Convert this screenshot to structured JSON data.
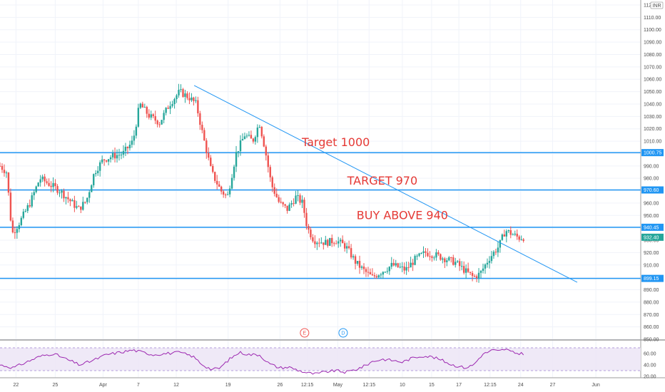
{
  "chart_data": {
    "type": "candlestick",
    "currency": "INR",
    "y_axis": {
      "min": 850,
      "max": 1120,
      "ticks": [
        850,
        860,
        870,
        880,
        890,
        900,
        910,
        920,
        930,
        940,
        950,
        960,
        970,
        980,
        990,
        1000,
        1010,
        1020,
        1030,
        1040,
        1050,
        1060,
        1070,
        1080,
        1090,
        1100,
        1110,
        1120
      ]
    },
    "x_ticks": [
      {
        "label": "22",
        "pos": 0.024
      },
      {
        "label": "25",
        "pos": 0.083
      },
      {
        "label": "Apr",
        "pos": 0.155
      },
      {
        "label": "7",
        "pos": 0.208
      },
      {
        "label": "12",
        "pos": 0.265
      },
      {
        "label": "19",
        "pos": 0.343
      },
      {
        "label": "26",
        "pos": 0.421
      },
      {
        "label": "12:15",
        "pos": 0.462
      },
      {
        "label": "May",
        "pos": 0.508
      },
      {
        "label": "12:15",
        "pos": 0.555
      },
      {
        "label": "10",
        "pos": 0.605
      },
      {
        "label": "15",
        "pos": 0.649
      },
      {
        "label": "17",
        "pos": 0.69
      },
      {
        "label": "12:15",
        "pos": 0.737
      },
      {
        "label": "24",
        "pos": 0.783
      },
      {
        "label": "27",
        "pos": 0.831
      },
      {
        "label": "Jun",
        "pos": 0.896
      }
    ],
    "horizontal_levels": [
      {
        "value": 1000.75,
        "label": "1000.75"
      },
      {
        "value": 970.6,
        "label": "970.60"
      },
      {
        "value": 940.45,
        "label": "940.45"
      },
      {
        "value": 899.15,
        "label": "899.15"
      }
    ],
    "last_price": {
      "value": 932.4,
      "label": "932.40",
      "color": "#26a69a"
    },
    "annotations": [
      {
        "text": "Target 1000",
        "value": 1006,
        "pos": 0.505
      },
      {
        "text": "TARGET 970",
        "value": 975,
        "pos": 0.575
      },
      {
        "text": "BUY ABOVE 940",
        "value": 947,
        "pos": 0.605
      }
    ],
    "trendline": [
      {
        "pos": 0.292,
        "value": 1055
      },
      {
        "pos": 0.868,
        "value": 896
      }
    ],
    "price_path": [
      [
        0.0,
        990
      ],
      [
        0.01,
        985
      ],
      [
        0.018,
        935
      ],
      [
        0.03,
        945
      ],
      [
        0.045,
        960
      ],
      [
        0.06,
        980
      ],
      [
        0.075,
        975
      ],
      [
        0.09,
        970
      ],
      [
        0.105,
        962
      ],
      [
        0.118,
        955
      ],
      [
        0.13,
        962
      ],
      [
        0.142,
        985
      ],
      [
        0.155,
        995
      ],
      [
        0.17,
        998
      ],
      [
        0.185,
        1000
      ],
      [
        0.2,
        1010
      ],
      [
        0.21,
        1040
      ],
      [
        0.225,
        1030
      ],
      [
        0.24,
        1025
      ],
      [
        0.255,
        1040
      ],
      [
        0.27,
        1050
      ],
      [
        0.285,
        1045
      ],
      [
        0.295,
        1040
      ],
      [
        0.305,
        1015
      ],
      [
        0.318,
        985
      ],
      [
        0.332,
        970
      ],
      [
        0.342,
        965
      ],
      [
        0.355,
        1000
      ],
      [
        0.368,
        1015
      ],
      [
        0.38,
        1010
      ],
      [
        0.39,
        1025
      ],
      [
        0.398,
        1005
      ],
      [
        0.408,
        975
      ],
      [
        0.42,
        960
      ],
      [
        0.432,
        955
      ],
      [
        0.445,
        965
      ],
      [
        0.455,
        960
      ],
      [
        0.462,
        940
      ],
      [
        0.472,
        930
      ],
      [
        0.49,
        928
      ],
      [
        0.505,
        930
      ],
      [
        0.52,
        925
      ],
      [
        0.535,
        912
      ],
      [
        0.548,
        905
      ],
      [
        0.56,
        900
      ],
      [
        0.575,
        905
      ],
      [
        0.59,
        910
      ],
      [
        0.61,
        906
      ],
      [
        0.625,
        915
      ],
      [
        0.64,
        920
      ],
      [
        0.655,
        918
      ],
      [
        0.67,
        915
      ],
      [
        0.685,
        912
      ],
      [
        0.7,
        905
      ],
      [
        0.712,
        900
      ],
      [
        0.722,
        903
      ],
      [
        0.735,
        915
      ],
      [
        0.75,
        925
      ],
      [
        0.76,
        938
      ],
      [
        0.77,
        935
      ],
      [
        0.78,
        932
      ],
      [
        0.79,
        932.4
      ]
    ],
    "rsi": {
      "min": 20,
      "max": 80,
      "ticks": [
        20,
        40,
        60
      ],
      "upper": 70,
      "lower": 30,
      "path": [
        [
          0.0,
          40
        ],
        [
          0.02,
          35
        ],
        [
          0.04,
          45
        ],
        [
          0.06,
          55
        ],
        [
          0.08,
          60
        ],
        [
          0.1,
          50
        ],
        [
          0.12,
          40
        ],
        [
          0.14,
          48
        ],
        [
          0.16,
          58
        ],
        [
          0.18,
          62
        ],
        [
          0.2,
          66
        ],
        [
          0.215,
          62
        ],
        [
          0.23,
          58
        ],
        [
          0.25,
          60
        ],
        [
          0.27,
          62
        ],
        [
          0.29,
          55
        ],
        [
          0.305,
          40
        ],
        [
          0.318,
          32
        ],
        [
          0.33,
          34
        ],
        [
          0.345,
          50
        ],
        [
          0.36,
          62
        ],
        [
          0.375,
          58
        ],
        [
          0.39,
          58
        ],
        [
          0.405,
          42
        ],
        [
          0.42,
          35
        ],
        [
          0.435,
          36
        ],
        [
          0.45,
          30
        ],
        [
          0.462,
          26
        ],
        [
          0.475,
          24
        ],
        [
          0.49,
          28
        ],
        [
          0.505,
          30
        ],
        [
          0.52,
          27
        ],
        [
          0.535,
          32
        ],
        [
          0.548,
          38
        ],
        [
          0.56,
          46
        ],
        [
          0.575,
          50
        ],
        [
          0.59,
          48
        ],
        [
          0.605,
          45
        ],
        [
          0.62,
          52
        ],
        [
          0.635,
          56
        ],
        [
          0.65,
          54
        ],
        [
          0.665,
          48
        ],
        [
          0.68,
          40
        ],
        [
          0.7,
          35
        ],
        [
          0.712,
          40
        ],
        [
          0.725,
          58
        ],
        [
          0.74,
          66
        ],
        [
          0.75,
          64
        ],
        [
          0.76,
          68
        ],
        [
          0.77,
          62
        ],
        [
          0.78,
          60
        ],
        [
          0.79,
          60
        ]
      ]
    },
    "events": [
      {
        "label": "E",
        "pos": 0.458,
        "color": "#ef5350"
      },
      {
        "label": "D",
        "pos": 0.516,
        "color": "#2196f3"
      }
    ]
  }
}
